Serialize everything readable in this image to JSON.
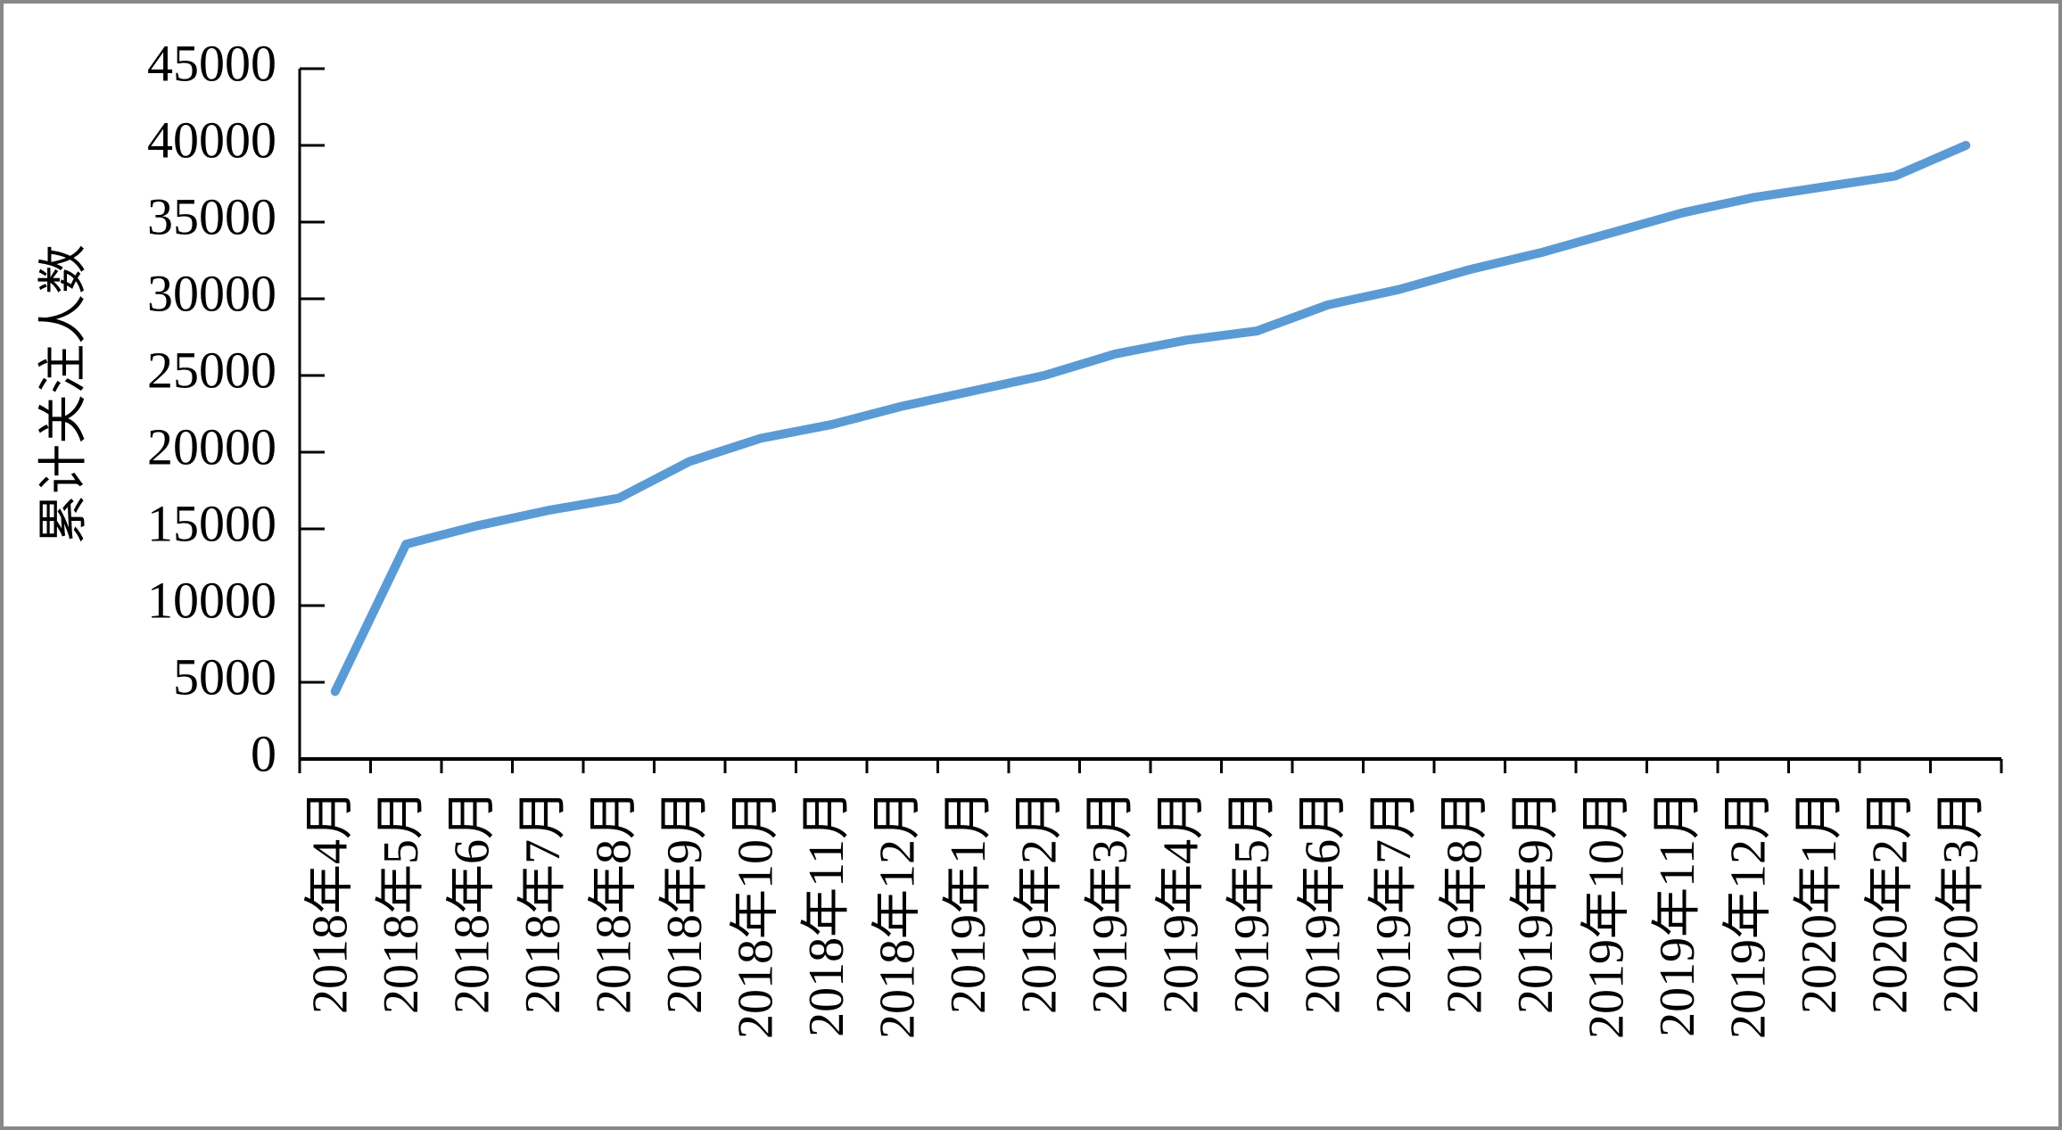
{
  "chart_data": {
    "type": "line",
    "y_label": "累计关注人数",
    "categories": [
      "2018年4月",
      "2018年5月",
      "2018年6月",
      "2018年7月",
      "2018年8月",
      "2018年9月",
      "2018年10月",
      "2018年11月",
      "2018年12月",
      "2019年1月",
      "2019年2月",
      "2019年3月",
      "2019年4月",
      "2019年5月",
      "2019年6月",
      "2019年7月",
      "2019年8月",
      "2019年9月",
      "2019年10月",
      "2019年11月",
      "2019年12月",
      "2020年1月",
      "2020年2月",
      "2020年3月"
    ],
    "values": [
      4400,
      14000,
      15200,
      16200,
      17000,
      19400,
      20900,
      21800,
      23000,
      24000,
      25000,
      26400,
      27300,
      27900,
      29600,
      30600,
      31900,
      33000,
      34300,
      35600,
      36600,
      37300,
      38000,
      40000
    ],
    "color": "#5b9bd5",
    "ylim": [
      0,
      45000
    ],
    "yticks": [
      0,
      5000,
      10000,
      15000,
      20000,
      25000,
      30000,
      35000,
      40000,
      45000
    ]
  }
}
